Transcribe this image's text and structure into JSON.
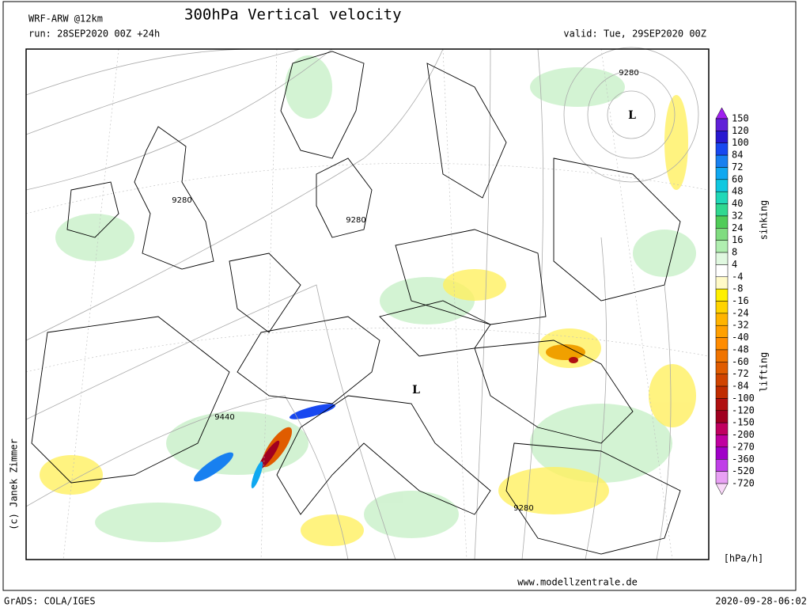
{
  "header": {
    "model": "WRF-ARW @12km",
    "title": "300hPa Vertical velocity",
    "run": "run: 28SEP2020 00Z +24h",
    "valid": "valid: Tue, 29SEP2020 00Z"
  },
  "map": {
    "labels": [
      "9280",
      "L",
      "9280",
      "9280",
      "L",
      "9440",
      "9280"
    ]
  },
  "colorbar": {
    "levels": [
      150,
      120,
      100,
      84,
      72,
      60,
      48,
      40,
      32,
      24,
      16,
      8,
      4,
      -4,
      -8,
      -16,
      -24,
      -32,
      -40,
      -48,
      -60,
      -72,
      -84,
      -100,
      -120,
      -150,
      -200,
      -270,
      -360,
      -520,
      -720
    ],
    "colors": [
      "#a020f0",
      "#6020d8",
      "#2818d0",
      "#1848f0",
      "#1880f0",
      "#10a8f0",
      "#10c8e0",
      "#20d8b8",
      "#30d890",
      "#50cc58",
      "#80dc80",
      "#b0eeb0",
      "#e0f8e0",
      "#ffffff",
      "#fffac8",
      "#fff000",
      "#ffd400",
      "#ffb400",
      "#ffa000",
      "#ff8c00",
      "#f07400",
      "#e05c00",
      "#d04400",
      "#c02c00",
      "#b01010",
      "#a00020",
      "#c00060",
      "#c000a0",
      "#a000c8",
      "#c040e8",
      "#e8a0f4",
      "#f8d8f8"
    ],
    "upper_label": "sinking",
    "lower_label": "lifting",
    "unit": "[hPa/h]"
  },
  "credit": "(c) Janek Zimmer",
  "website": "www.modellzentrale.de",
  "footer": {
    "software": "GrADS: COLA/IGES",
    "timestamp": "2020-09-28-06:02"
  }
}
